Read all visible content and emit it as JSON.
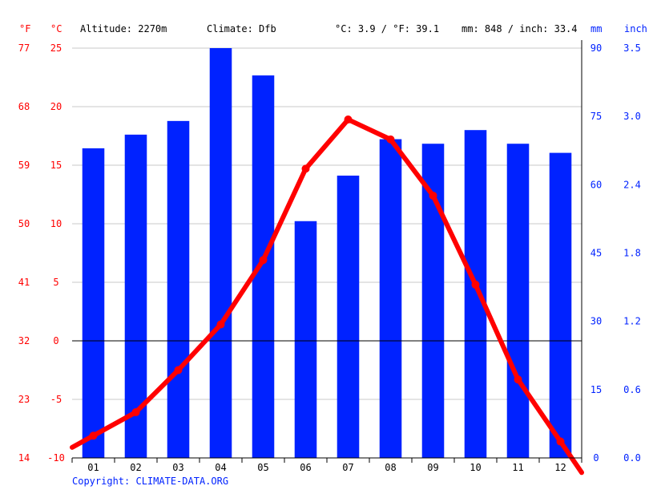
{
  "header": {
    "f_unit": "°F",
    "c_unit": "°C",
    "altitude": "Altitude: 2270m",
    "climate": "Climate: Dfb",
    "avg_temp": "°C: 3.9 / °F: 39.1",
    "precip": "mm: 848 / inch: 33.4",
    "mm_unit": "mm",
    "inch_unit": "inch"
  },
  "copyright": "Copyright: CLIMATE-DATA.ORG",
  "colors": {
    "temperature": "#ff0000",
    "precipitation": "#0022ff",
    "grid": "#c8c8c8",
    "axis_text_temp": "#ff0000",
    "axis_text_precip": "#0022ff"
  },
  "chart_data": {
    "type": "bar+line",
    "categories": [
      "01",
      "02",
      "03",
      "04",
      "05",
      "06",
      "07",
      "08",
      "09",
      "10",
      "11",
      "12"
    ],
    "series": [
      {
        "values": [
          68,
          71,
          74,
          90,
          84,
          52,
          62,
          70,
          69,
          72,
          69,
          67
        ]
      },
      {
        "values": [
          -8.1,
          -6.1,
          -2.5,
          1.4,
          6.9,
          14.7,
          18.9,
          17.2,
          12.4,
          4.8,
          -3.3,
          -8.6
        ]
      }
    ],
    "temp_axis": {
      "c_ticks": [
        25,
        20,
        15,
        10,
        5,
        0,
        -5,
        -10
      ],
      "f_ticks": [
        77,
        68,
        59,
        50,
        41,
        32,
        23,
        14
      ],
      "ylim": [
        -10,
        25
      ]
    },
    "precip_axis": {
      "mm_ticks": [
        90,
        75,
        60,
        45,
        30,
        15,
        0
      ],
      "inch_ticks": [
        "3.5",
        "3.0",
        "2.4",
        "1.8",
        "1.2",
        "0.6",
        "0.0"
      ],
      "ylim": [
        0,
        90
      ]
    }
  }
}
